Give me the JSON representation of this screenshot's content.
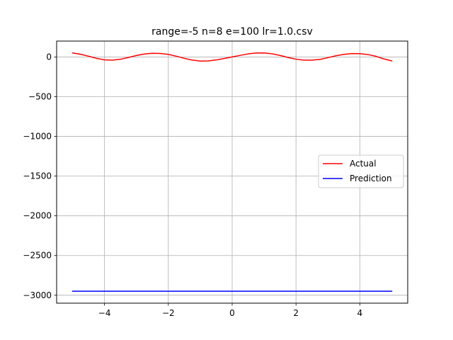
{
  "chart_data": {
    "type": "line",
    "title": "range=-5 n=8 e=100 lr=1.0.csv",
    "xlabel": "",
    "ylabel": "",
    "xlim": [
      -5.5,
      5.5
    ],
    "ylim": [
      -3100,
      200
    ],
    "grid": true,
    "legend_position": "center-right",
    "x_ticks": [
      -4,
      -2,
      0,
      2,
      4
    ],
    "x_tick_labels": [
      "−4",
      "−2",
      "0",
      "2",
      "4"
    ],
    "y_ticks": [
      0,
      -500,
      -1000,
      -1500,
      -2000,
      -2500,
      -3000
    ],
    "y_tick_labels": [
      "0",
      "−500",
      "−1000",
      "−1500",
      "−2000",
      "−2500",
      "−3000"
    ],
    "series": [
      {
        "name": "Actual",
        "color": "#ff0000",
        "x": [
          -5.0,
          -4.75,
          -4.5,
          -4.25,
          -4.0,
          -3.75,
          -3.5,
          -3.25,
          -3.0,
          -2.75,
          -2.5,
          -2.25,
          -2.0,
          -1.75,
          -1.5,
          -1.25,
          -1.0,
          -0.75,
          -0.5,
          -0.25,
          0.0,
          0.25,
          0.5,
          0.75,
          1.0,
          1.25,
          1.5,
          1.75,
          2.0,
          2.25,
          2.5,
          2.75,
          3.0,
          3.25,
          3.5,
          3.75,
          4.0,
          4.25,
          4.5,
          4.75,
          5.0
        ],
        "y": [
          51,
          34,
          10,
          -17,
          -36,
          -40,
          -29,
          -6,
          18,
          37,
          46,
          44,
          33,
          10,
          -17,
          -39,
          -52,
          -50,
          -38,
          -20,
          0,
          20,
          39,
          50,
          51,
          40,
          19,
          -6,
          -28,
          -40,
          -40,
          -31,
          -9,
          15,
          33,
          43,
          42,
          31,
          9,
          -24,
          -49
        ]
      },
      {
        "name": "Prediction",
        "color": "#0000ff",
        "x": [
          -5.0,
          5.0
        ],
        "y": [
          -2950,
          -2950
        ]
      }
    ]
  }
}
